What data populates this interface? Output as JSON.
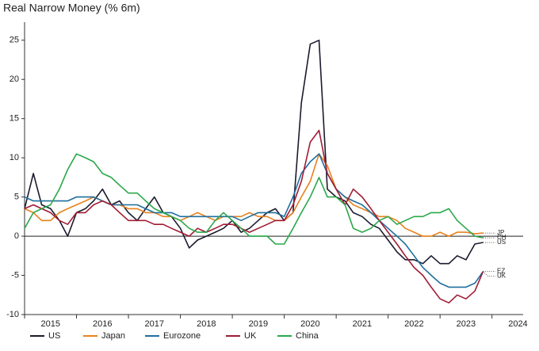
{
  "chart_data": {
    "type": "line",
    "title": "Real Narrow Money (% 6m)",
    "x": [
      2015,
      2015.17,
      2015.33,
      2015.5,
      2015.67,
      2015.83,
      2016,
      2016.17,
      2016.33,
      2016.5,
      2016.67,
      2016.83,
      2017,
      2017.17,
      2017.33,
      2017.5,
      2017.67,
      2017.83,
      2018,
      2018.17,
      2018.33,
      2018.5,
      2018.67,
      2018.83,
      2019,
      2019.17,
      2019.33,
      2019.5,
      2019.67,
      2019.83,
      2020,
      2020.17,
      2020.33,
      2020.5,
      2020.67,
      2020.83,
      2021,
      2021.17,
      2021.33,
      2021.5,
      2021.67,
      2021.83,
      2022,
      2022.17,
      2022.33,
      2022.5,
      2022.67,
      2022.83,
      2023,
      2023.17,
      2023.33,
      2023.5,
      2023.67,
      2023.83
    ],
    "series": [
      {
        "name": "US",
        "end_label": "US",
        "color": "#1b1b2f",
        "values": [
          3.5,
          8,
          4,
          3.5,
          2,
          0,
          3,
          3.5,
          4.5,
          6,
          4,
          4.5,
          3,
          2,
          3.5,
          5,
          3,
          2.5,
          1,
          -1.5,
          -0.5,
          0,
          0.5,
          1,
          2,
          0.5,
          1,
          2,
          3,
          3.5,
          2,
          3,
          17,
          24.5,
          25,
          6,
          5,
          4.5,
          3,
          2.5,
          1.5,
          1,
          -0.5,
          -2,
          -3,
          -3,
          -3.5,
          -2.5,
          -3.5,
          -3.5,
          -2.5,
          -3,
          -1,
          -0.8
        ]
      },
      {
        "name": "Japan",
        "end_label": "JP",
        "color": "#e8821e",
        "values": [
          3.5,
          3,
          2,
          2,
          3,
          3.5,
          4,
          4.5,
          5,
          4.5,
          4,
          4,
          3.5,
          3.5,
          3,
          3,
          2.5,
          2.5,
          2,
          2.5,
          3,
          2.5,
          2,
          2.5,
          2.5,
          2.5,
          3,
          2.5,
          2.5,
          2,
          2,
          3,
          5,
          7,
          10.5,
          9,
          6,
          5,
          4,
          3.5,
          3,
          2.5,
          2.5,
          2,
          1,
          0.5,
          0,
          0,
          0.5,
          0,
          0.5,
          0.5,
          0.3,
          0.4
        ]
      },
      {
        "name": "Eurozone",
        "end_label": "EZ",
        "color": "#1f6f9e",
        "values": [
          5,
          4.5,
          4.5,
          4.5,
          4.5,
          4.5,
          5,
          5,
          5,
          4.5,
          4,
          4,
          4,
          4,
          3.5,
          3,
          3,
          3,
          2.5,
          2.5,
          2.5,
          2.5,
          2.5,
          2.5,
          2.5,
          2,
          2.5,
          3,
          3,
          3,
          2.5,
          5,
          8,
          9.5,
          10.5,
          8,
          6,
          5,
          4.5,
          4,
          3,
          2,
          1,
          0,
          -1,
          -2.5,
          -4,
          -5,
          -6,
          -6.5,
          -6.5,
          -6.5,
          -6,
          -4.5
        ]
      },
      {
        "name": "UK",
        "end_label": "UK",
        "color": "#a01c35",
        "values": [
          3.5,
          4,
          3.5,
          3,
          2,
          1.5,
          3,
          3,
          4,
          4.5,
          4,
          3,
          2,
          2,
          2,
          1.5,
          1.5,
          1,
          0.5,
          0,
          1,
          0.5,
          1,
          1.5,
          1.5,
          1,
          0.5,
          1,
          1.5,
          2,
          2,
          4,
          7,
          12,
          13.5,
          8,
          6,
          4,
          6,
          5,
          3.5,
          2,
          0.5,
          -1,
          -2.5,
          -4,
          -5,
          -6.5,
          -8,
          -8.5,
          -7.5,
          -8,
          -7,
          -4.5
        ]
      },
      {
        "name": "China",
        "end_label": "CH",
        "color": "#2aa84a",
        "values": [
          1,
          3,
          3.5,
          4,
          6,
          8.5,
          10.5,
          10,
          9.5,
          8,
          7.5,
          6.5,
          5.5,
          5.5,
          4.5,
          3.5,
          3,
          2.5,
          2,
          1,
          0.5,
          0.5,
          2,
          3,
          2,
          1,
          0,
          0,
          0,
          -1,
          -1,
          1,
          3,
          5,
          7.5,
          5,
          5,
          4,
          1,
          0.5,
          1,
          2,
          2.5,
          1.5,
          2,
          2.5,
          2.5,
          3,
          3,
          3.5,
          2,
          1,
          0,
          -0.2
        ]
      }
    ],
    "xlim": [
      2015,
      2024.6
    ],
    "xticks": [
      {
        "value": 2015.5,
        "label": "2015"
      },
      {
        "value": 2016.5,
        "label": "2016"
      },
      {
        "value": 2017.5,
        "label": "2017"
      },
      {
        "value": 2018.5,
        "label": "2018"
      },
      {
        "value": 2019.5,
        "label": "2019"
      },
      {
        "value": 2020.5,
        "label": "2020"
      },
      {
        "value": 2021.5,
        "label": "2021"
      },
      {
        "value": 2022.5,
        "label": "2022"
      },
      {
        "value": 2023.5,
        "label": "2023"
      },
      {
        "value": 2024.5,
        "label": "2024"
      }
    ],
    "ylim": [
      -10,
      27.3
    ],
    "yticks": [
      -10,
      -5,
      0,
      5,
      10,
      15,
      20,
      25
    ]
  }
}
